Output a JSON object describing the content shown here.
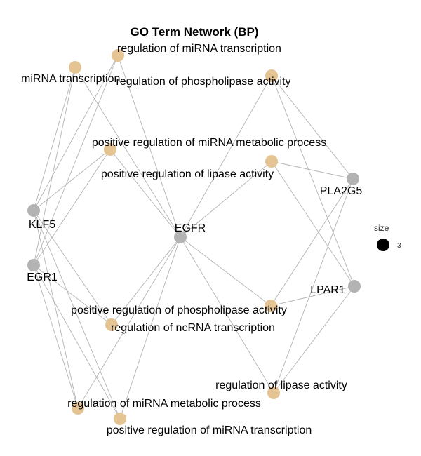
{
  "title": "GO Term Network (BP)",
  "colors": {
    "go_term": "#e5c494",
    "gene": "#b3b3b3",
    "edge": "#b3b3b3",
    "legend_dot": "#000000"
  },
  "legend": {
    "title": "size",
    "value": "3"
  },
  "nodes": [
    {
      "id": "reg_mirna_transcription",
      "label": "regulation of miRNA transcription",
      "type": "go_term"
    },
    {
      "id": "mirna_transcription",
      "label": "miRNA transcription",
      "type": "go_term"
    },
    {
      "id": "reg_phospholipase",
      "label": "regulation of phospholipase activity",
      "type": "go_term"
    },
    {
      "id": "pos_reg_mirna_metabolic",
      "label": "positive regulation of miRNA metabolic process",
      "type": "go_term"
    },
    {
      "id": "pos_reg_lipase",
      "label": "positive regulation of lipase activity",
      "type": "go_term"
    },
    {
      "id": "PLA2G5",
      "label": "PLA2G5",
      "type": "gene"
    },
    {
      "id": "KLF5",
      "label": "KLF5",
      "type": "gene"
    },
    {
      "id": "EGFR",
      "label": "EGFR",
      "type": "gene"
    },
    {
      "id": "EGR1",
      "label": "EGR1",
      "type": "gene"
    },
    {
      "id": "LPAR1",
      "label": "LPAR1",
      "type": "gene"
    },
    {
      "id": "pos_reg_phospholipase",
      "label": "positive regulation of phospholipase activity",
      "type": "go_term"
    },
    {
      "id": "reg_ncrna_transcription",
      "label": "regulation of ncRNA transcription",
      "type": "go_term"
    },
    {
      "id": "reg_lipase",
      "label": "regulation of lipase activity",
      "type": "go_term"
    },
    {
      "id": "reg_mirna_metabolic",
      "label": "regulation of miRNA metabolic process",
      "type": "go_term"
    },
    {
      "id": "pos_reg_mirna_transcription",
      "label": "positive regulation of miRNA transcription",
      "type": "go_term"
    }
  ],
  "edges": [
    [
      "KLF5",
      "reg_mirna_transcription"
    ],
    [
      "KLF5",
      "mirna_transcription"
    ],
    [
      "KLF5",
      "pos_reg_mirna_metabolic"
    ],
    [
      "KLF5",
      "reg_ncrna_transcription"
    ],
    [
      "KLF5",
      "reg_mirna_metabolic"
    ],
    [
      "KLF5",
      "pos_reg_mirna_transcription"
    ],
    [
      "EGR1",
      "reg_mirna_transcription"
    ],
    [
      "EGR1",
      "mirna_transcription"
    ],
    [
      "EGR1",
      "pos_reg_mirna_metabolic"
    ],
    [
      "EGR1",
      "reg_ncrna_transcription"
    ],
    [
      "EGR1",
      "reg_mirna_metabolic"
    ],
    [
      "EGR1",
      "pos_reg_mirna_transcription"
    ],
    [
      "EGFR",
      "reg_mirna_transcription"
    ],
    [
      "EGFR",
      "mirna_transcription"
    ],
    [
      "EGFR",
      "pos_reg_mirna_metabolic"
    ],
    [
      "EGFR",
      "reg_ncrna_transcription"
    ],
    [
      "EGFR",
      "reg_mirna_metabolic"
    ],
    [
      "EGFR",
      "pos_reg_mirna_transcription"
    ],
    [
      "EGFR",
      "reg_phospholipase"
    ],
    [
      "EGFR",
      "pos_reg_lipase"
    ],
    [
      "EGFR",
      "pos_reg_phospholipase"
    ],
    [
      "EGFR",
      "reg_lipase"
    ],
    [
      "PLA2G5",
      "reg_phospholipase"
    ],
    [
      "PLA2G5",
      "pos_reg_lipase"
    ],
    [
      "PLA2G5",
      "pos_reg_phospholipase"
    ],
    [
      "PLA2G5",
      "reg_lipase"
    ],
    [
      "LPAR1",
      "reg_phospholipase"
    ],
    [
      "LPAR1",
      "pos_reg_lipase"
    ],
    [
      "LPAR1",
      "pos_reg_phospholipase"
    ],
    [
      "LPAR1",
      "reg_lipase"
    ]
  ]
}
